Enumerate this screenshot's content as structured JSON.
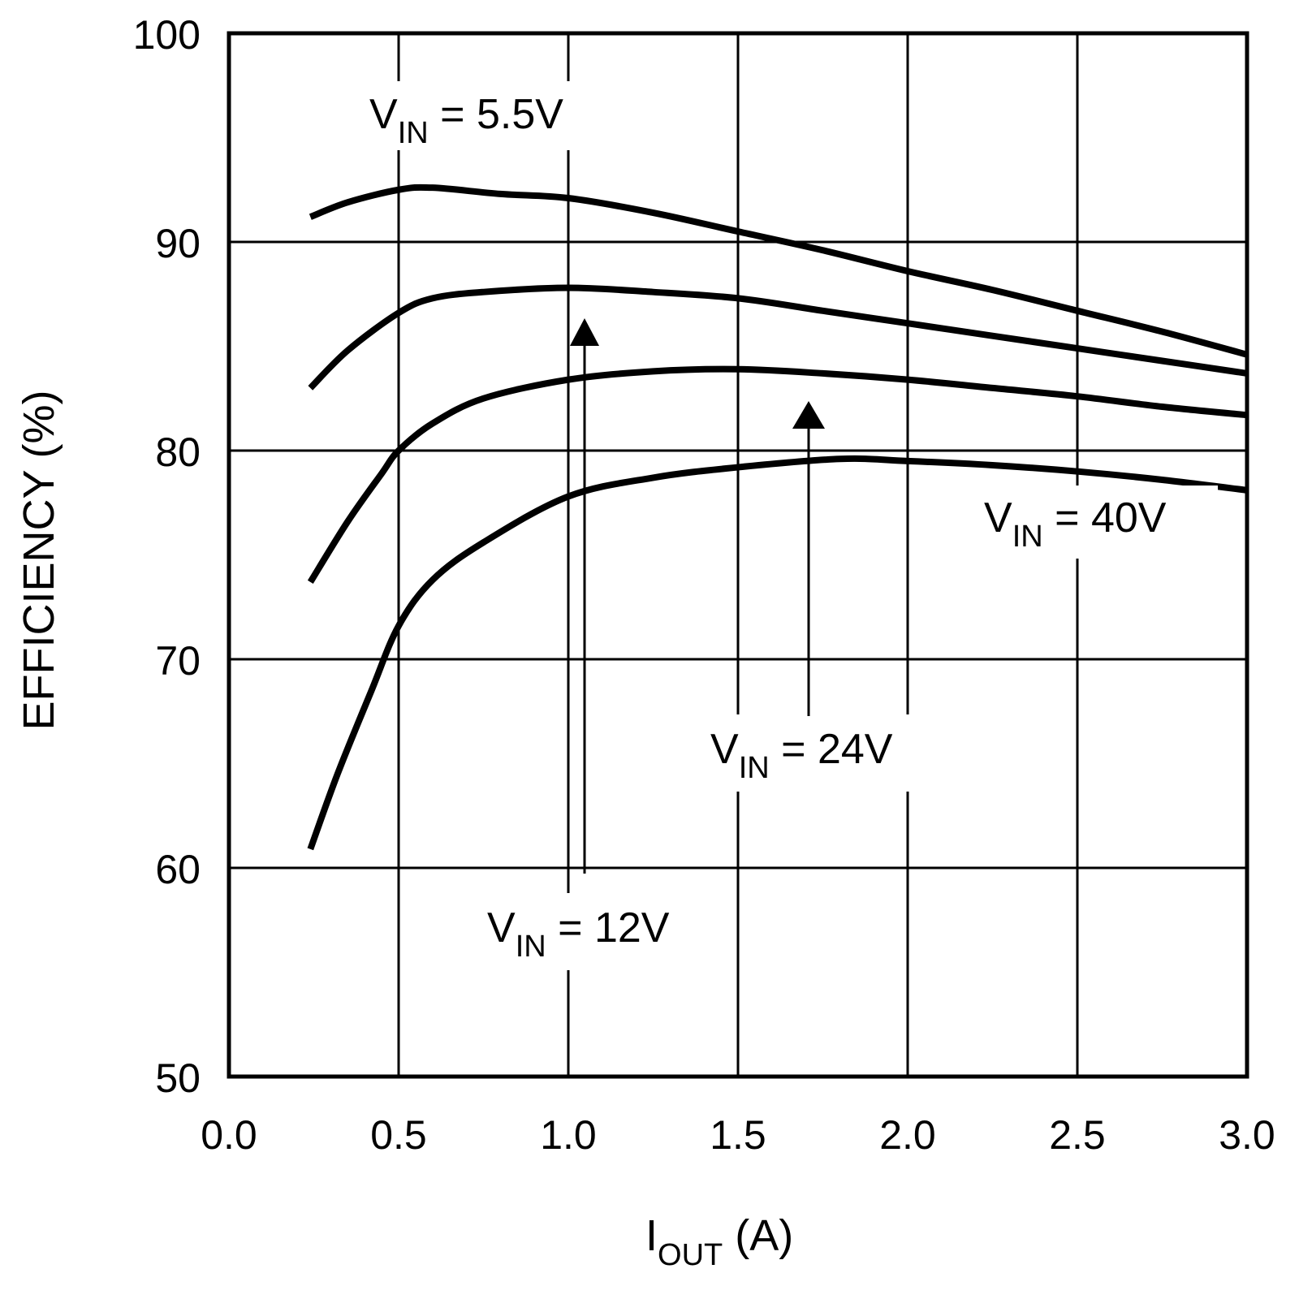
{
  "chart_data": {
    "type": "line",
    "title": "",
    "xlabel": {
      "main": "I",
      "sub": "OUT",
      "rest": " (A)"
    },
    "ylabel": "EFFICIENCY (%)",
    "xlim": [
      0,
      3
    ],
    "ylim": [
      50,
      100
    ],
    "xticks": [
      "0.0",
      "0.5",
      "1.0",
      "1.5",
      "2.0",
      "2.5",
      "3.0"
    ],
    "yticks": [
      "50",
      "60",
      "70",
      "80",
      "90",
      "100"
    ],
    "grid": true,
    "colors": {
      "line": "#000000",
      "grid": "#000000",
      "background": "#ffffff"
    },
    "series": [
      {
        "name": "VIN = 5.5V",
        "x": [
          0.24,
          0.35,
          0.5,
          0.6,
          0.8,
          1.0,
          1.25,
          1.5,
          1.75,
          2.0,
          2.25,
          2.5,
          2.75,
          3.0
        ],
        "y": [
          91.2,
          91.9,
          92.5,
          92.6,
          92.3,
          92.1,
          91.4,
          90.5,
          89.6,
          88.6,
          87.7,
          86.7,
          85.7,
          84.6
        ]
      },
      {
        "name": "VIN = 12V",
        "x": [
          0.24,
          0.35,
          0.5,
          0.6,
          0.75,
          1.0,
          1.25,
          1.5,
          1.75,
          2.0,
          2.25,
          2.5,
          2.75,
          3.0
        ],
        "y": [
          83.0,
          84.8,
          86.6,
          87.3,
          87.6,
          87.8,
          87.6,
          87.3,
          86.7,
          86.1,
          85.5,
          84.9,
          84.3,
          83.7
        ]
      },
      {
        "name": "VIN = 24V",
        "x": [
          0.24,
          0.35,
          0.45,
          0.5,
          0.6,
          0.75,
          1.0,
          1.25,
          1.5,
          1.75,
          2.0,
          2.25,
          2.5,
          2.75,
          3.0
        ],
        "y": [
          73.7,
          76.6,
          78.9,
          80.0,
          81.3,
          82.5,
          83.4,
          83.8,
          83.9,
          83.7,
          83.4,
          83.0,
          82.6,
          82.1,
          81.7
        ]
      },
      {
        "name": "VIN = 40V",
        "x": [
          0.24,
          0.32,
          0.42,
          0.5,
          0.6,
          0.75,
          1.0,
          1.25,
          1.5,
          1.8,
          2.0,
          2.25,
          2.5,
          2.75,
          3.0
        ],
        "y": [
          60.9,
          64.5,
          68.5,
          71.6,
          73.8,
          75.6,
          77.8,
          78.7,
          79.2,
          79.6,
          79.5,
          79.3,
          79.0,
          78.6,
          78.1
        ]
      }
    ],
    "annotations": [
      {
        "main": "V",
        "sub": "IN",
        "rest": " = 5.5V"
      },
      {
        "main": "V",
        "sub": "IN",
        "rest": " = 12V"
      },
      {
        "main": "V",
        "sub": "IN",
        "rest": " = 24V"
      },
      {
        "main": "V",
        "sub": "IN",
        "rest": " = 40V"
      }
    ]
  }
}
